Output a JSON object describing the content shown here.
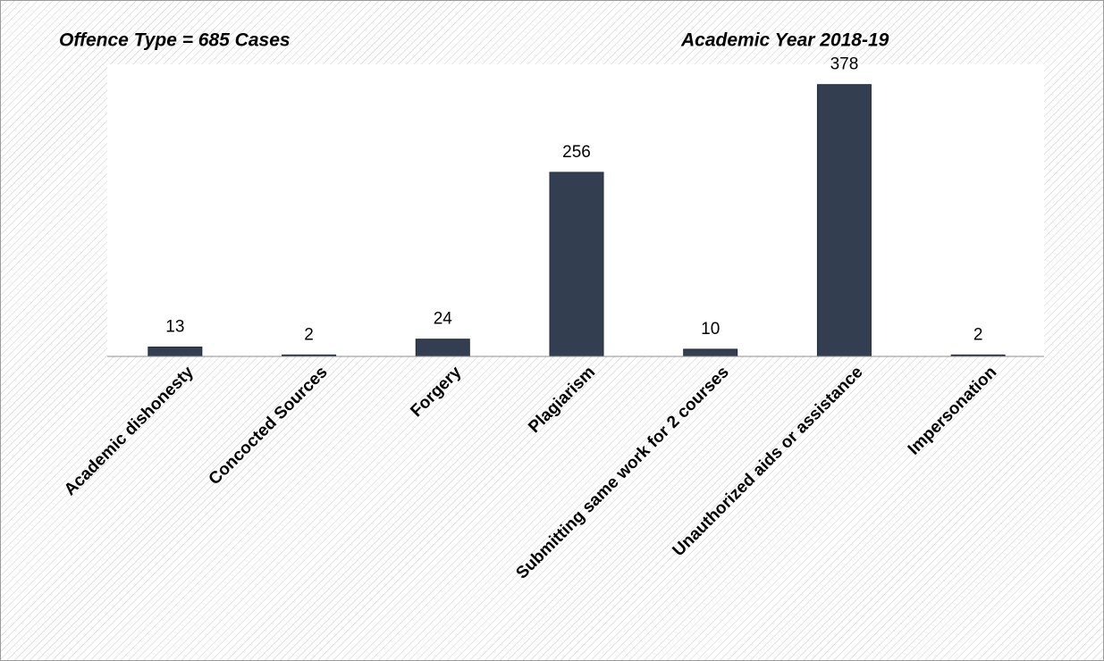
{
  "chart_data": {
    "type": "bar",
    "title": "Offence Type =  685 Cases",
    "subtitle": "Academic Year 2018-19",
    "categories": [
      "Academic dishonesty",
      "Concocted Sources",
      "Forgery",
      "Plagiarism",
      "Submitting same work for 2 courses",
      "Unauthorized aids or assistance",
      "Impersonation"
    ],
    "values": [
      13,
      2,
      24,
      256,
      10,
      378,
      2
    ],
    "color": "#333f50",
    "ylim": [
      0,
      400
    ]
  }
}
